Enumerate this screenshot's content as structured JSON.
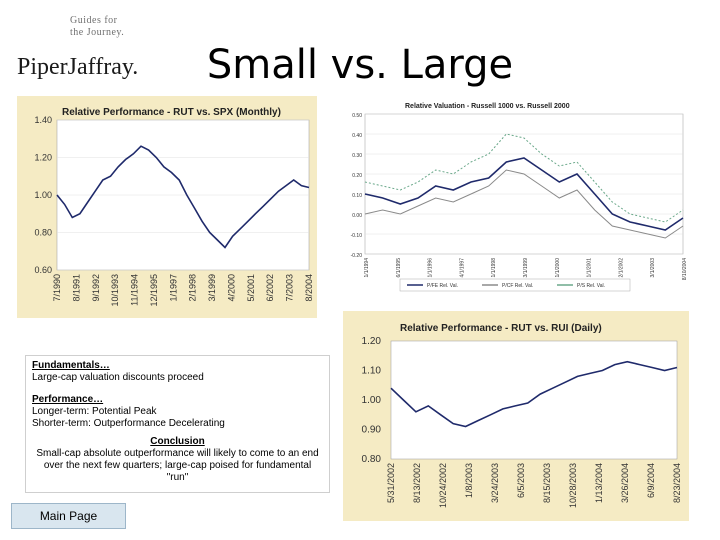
{
  "header": {
    "guides_line1": "Guides for",
    "guides_line2": "the Journey.",
    "brand": "PiperJaffray.",
    "title": "Small vs. Large"
  },
  "chart_data": [
    {
      "type": "line",
      "title": "Relative Performance - RUT vs. SPX (Monthly)",
      "ylim": [
        0.6,
        1.4
      ],
      "yticks": [
        "1.40",
        "1.20",
        "1.00",
        "0.80",
        "0.60"
      ],
      "xticks": [
        "7/1990",
        "8/1991",
        "9/1992",
        "10/1993",
        "11/1994",
        "12/1995",
        "1/1997",
        "2/1998",
        "3/1999",
        "4/2000",
        "5/2001",
        "6/2002",
        "7/2003",
        "8/2004"
      ],
      "series": [
        {
          "values": [
            1.0,
            0.95,
            0.88,
            0.9,
            0.96,
            1.02,
            1.08,
            1.1,
            1.15,
            1.19,
            1.22,
            1.26,
            1.24,
            1.2,
            1.15,
            1.12,
            1.08,
            1.0,
            0.93,
            0.86,
            0.8,
            0.76,
            0.72,
            0.78,
            0.82,
            0.86,
            0.9,
            0.94,
            0.98,
            1.02,
            1.05,
            1.08,
            1.05,
            1.04
          ]
        }
      ],
      "colors": {
        "line": "#1f2a6b",
        "background": "#f5ebc4",
        "plot": "#ffffff"
      }
    },
    {
      "type": "line",
      "title": "Relative Valuation - Russell 1000 vs. Russell 2000",
      "ylim": [
        -0.2,
        0.5
      ],
      "yticks": [
        "0.50",
        "0.40",
        "0.30",
        "0.20",
        "0.10",
        "0.00",
        "-0.10",
        "-0.20"
      ],
      "xticks": [
        "1/1/1994",
        "6/1/1995",
        "1/1/1996",
        "4/1/1997",
        "1/1/1998",
        "3/1/1999",
        "1/1/2000",
        "1/1/2001",
        "2/1/2002",
        "3/1/2003",
        "8/10/2004"
      ],
      "legend": [
        "P/FE Rel. Val.",
        "P/CF Rel. Val.",
        "P/S Rel. Val."
      ],
      "series": [
        {
          "name": "P/FE Rel. Val.",
          "values": [
            0.1,
            0.08,
            0.05,
            0.08,
            0.14,
            0.12,
            0.16,
            0.18,
            0.26,
            0.28,
            0.22,
            0.16,
            0.2,
            0.1,
            0.0,
            -0.04,
            -0.06,
            -0.08,
            -0.02
          ]
        },
        {
          "name": "P/CF Rel. Val.",
          "values": [
            0.0,
            0.02,
            0.0,
            0.04,
            0.08,
            0.06,
            0.1,
            0.14,
            0.22,
            0.2,
            0.14,
            0.08,
            0.12,
            0.02,
            -0.06,
            -0.08,
            -0.1,
            -0.12,
            -0.06
          ]
        },
        {
          "name": "P/S Rel. Val.",
          "values": [
            0.16,
            0.14,
            0.12,
            0.16,
            0.22,
            0.2,
            0.26,
            0.3,
            0.4,
            0.38,
            0.3,
            0.24,
            0.26,
            0.16,
            0.06,
            0.0,
            -0.02,
            -0.04,
            0.02
          ]
        }
      ],
      "colors": {
        "pfe": "#1f2a6b",
        "pcf": "#8a8a8a",
        "ps": "#6aa88a"
      }
    },
    {
      "type": "line",
      "title": "Relative Performance - RUT vs. RUI (Daily)",
      "ylim": [
        0.8,
        1.2
      ],
      "yticks": [
        "1.20",
        "1.10",
        "1.00",
        "0.90",
        "0.80"
      ],
      "xticks": [
        "5/31/2002",
        "8/13/2002",
        "10/24/2002",
        "1/8/2003",
        "3/24/2003",
        "6/5/2003",
        "8/15/2003",
        "10/28/2003",
        "1/13/2004",
        "3/26/2004",
        "6/9/2004",
        "8/23/2004"
      ],
      "series": [
        {
          "values": [
            1.04,
            1.0,
            0.96,
            0.98,
            0.95,
            0.92,
            0.91,
            0.93,
            0.95,
            0.97,
            0.98,
            0.99,
            1.02,
            1.04,
            1.06,
            1.08,
            1.09,
            1.1,
            1.12,
            1.13,
            1.12,
            1.11,
            1.1,
            1.11
          ]
        }
      ],
      "colors": {
        "line": "#1f2a6b",
        "background": "#f5ebc4",
        "plot": "#ffffff"
      }
    }
  ],
  "notes": {
    "fundamentals_heading": "Fundamentals…",
    "fundamentals_text": "Large-cap valuation discounts proceed",
    "performance_heading": "Performance…",
    "performance_line1": "Longer-term: Potential Peak",
    "performance_line2": "Shorter-term: Outperformance Decelerating",
    "conclusion_heading": "Conclusion",
    "conclusion_text": "Small-cap absolute outperformance will likely to come to an end over the next few quarters; large-cap poised for fundamental \"run\""
  },
  "nav": {
    "main_page": "Main Page"
  }
}
